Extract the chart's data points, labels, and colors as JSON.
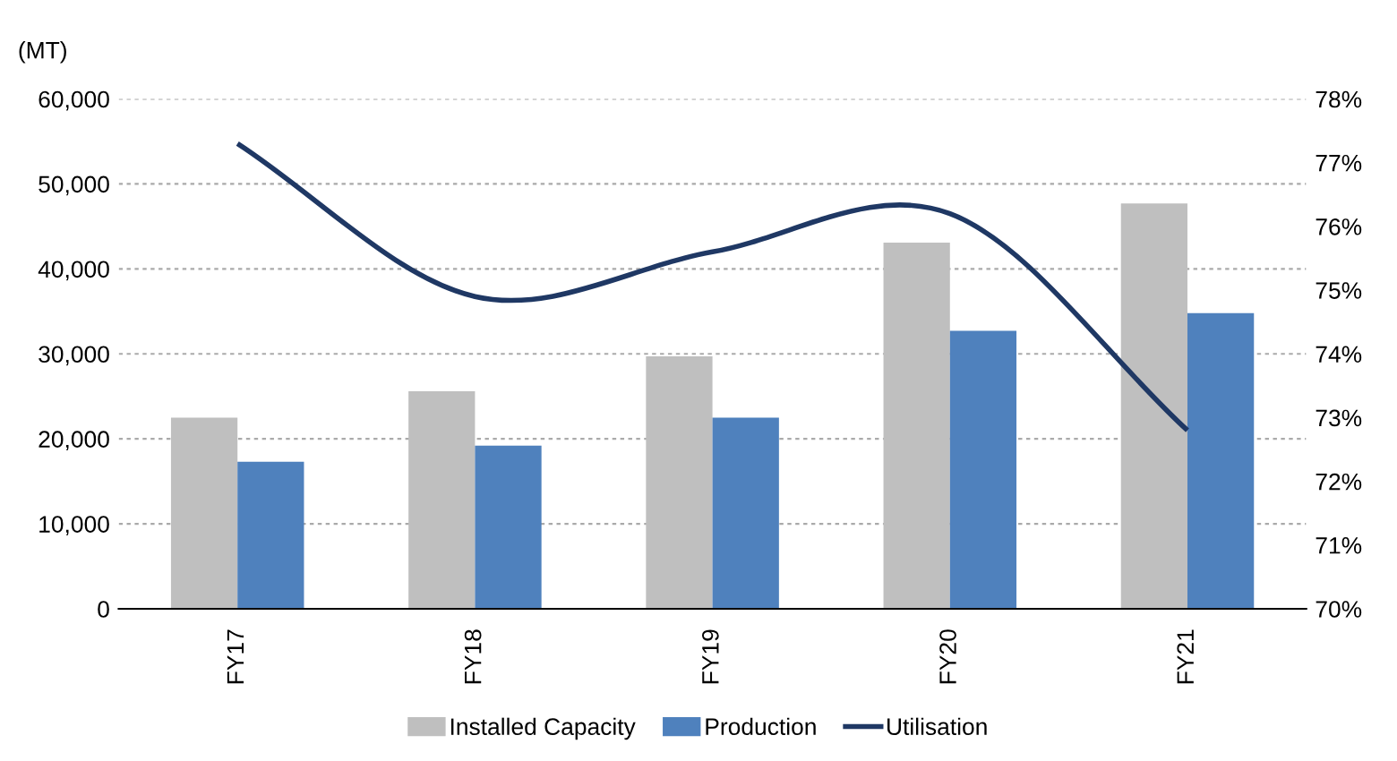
{
  "chart_data": {
    "type": "bar",
    "ylabel": "(MT)",
    "categories": [
      "FY17",
      "FY18",
      "FY19",
      "FY20",
      "FY21"
    ],
    "series": [
      {
        "name": "Installed Capacity",
        "color": "#bfbfbf",
        "values": [
          22500,
          25600,
          29700,
          43100,
          47700
        ]
      },
      {
        "name": "Production",
        "color": "#4f81bd",
        "values": [
          17300,
          19200,
          22500,
          32700,
          34800
        ]
      },
      {
        "name": "Utilisation",
        "type": "line",
        "axis": "y2",
        "color": "#1f3864",
        "values": [
          77.3,
          74.9,
          75.6,
          76.2,
          72.8
        ]
      }
    ],
    "ylim": [
      0,
      60000
    ],
    "yticks": [
      {
        "value": 0,
        "label": "0"
      },
      {
        "value": 10000,
        "label": "10,000"
      },
      {
        "value": 20000,
        "label": "20,000"
      },
      {
        "value": 30000,
        "label": "30,000"
      },
      {
        "value": 40000,
        "label": "40,000"
      },
      {
        "value": 50000,
        "label": "50,000"
      },
      {
        "value": 60000,
        "label": "60,000"
      }
    ],
    "y2lim": [
      70,
      78
    ],
    "y2ticks": [
      {
        "value": 70,
        "label": "70%"
      },
      {
        "value": 71,
        "label": "71%"
      },
      {
        "value": 72,
        "label": "72%"
      },
      {
        "value": 73,
        "label": "73%"
      },
      {
        "value": 74,
        "label": "74%"
      },
      {
        "value": 75,
        "label": "75%"
      },
      {
        "value": 76,
        "label": "76%"
      },
      {
        "value": 77,
        "label": "77%"
      },
      {
        "value": 78,
        "label": "78%"
      }
    ],
    "grid": "y",
    "legend": "bottom",
    "line_style": "solid",
    "marker": "none"
  }
}
